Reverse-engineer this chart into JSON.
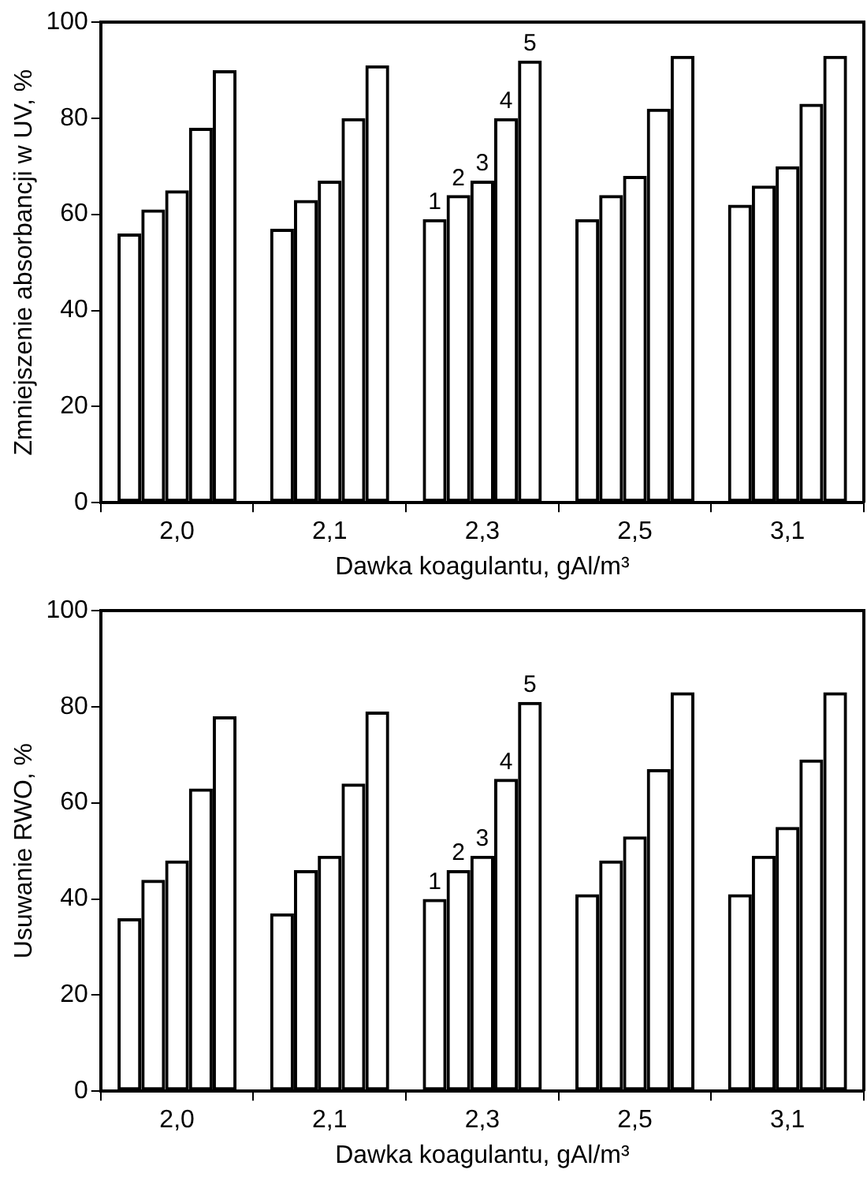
{
  "chart_data": [
    {
      "type": "bar",
      "xlabel": "Dawka koagulantu, gAl/m³",
      "ylabel": "Zmniejszenie absorbancji w UV, %",
      "categories": [
        "2,0",
        "2,1",
        "2,3",
        "2,5",
        "3,1"
      ],
      "series": [
        {
          "name": "1",
          "color": "#000000",
          "values": [
            56,
            57,
            59,
            59,
            62
          ]
        },
        {
          "name": "2",
          "color": "#000000",
          "values": [
            61,
            63,
            64,
            64,
            66
          ]
        },
        {
          "name": "3",
          "color": "#000000",
          "values": [
            65,
            67,
            67,
            68,
            70
          ]
        },
        {
          "name": "4",
          "color": "#000000",
          "values": [
            78,
            80,
            80,
            82,
            83
          ]
        },
        {
          "name": "5",
          "color": "#000000",
          "values": [
            90,
            91,
            92,
            93,
            93
          ]
        }
      ],
      "ylim": [
        0,
        100
      ],
      "yticks": [
        0,
        20,
        40,
        60,
        80,
        100
      ],
      "grid": false,
      "legend": false
    },
    {
      "type": "bar",
      "xlabel": "Dawka koagulantu, gAl/m³",
      "ylabel": "Usuwanie RWO, %",
      "categories": [
        "2,0",
        "2,1",
        "2,3",
        "2,5",
        "3,1"
      ],
      "series": [
        {
          "name": "1",
          "color": "#000000",
          "values": [
            36,
            37,
            40,
            41,
            41
          ]
        },
        {
          "name": "2",
          "color": "#000000",
          "values": [
            44,
            46,
            46,
            48,
            49
          ]
        },
        {
          "name": "3",
          "color": "#000000",
          "values": [
            48,
            49,
            49,
            53,
            55
          ]
        },
        {
          "name": "4",
          "color": "#000000",
          "values": [
            63,
            64,
            65,
            67,
            69
          ]
        },
        {
          "name": "5",
          "color": "#000000",
          "values": [
            78,
            79,
            81,
            83,
            83
          ]
        }
      ],
      "ylim": [
        0,
        100
      ],
      "yticks": [
        0,
        20,
        40,
        60,
        80,
        100
      ],
      "grid": false,
      "legend": false
    }
  ]
}
